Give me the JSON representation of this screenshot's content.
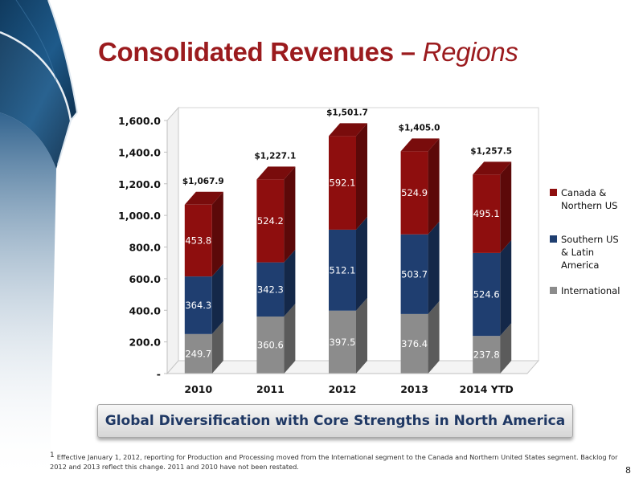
{
  "slide": {
    "title": "Consolidated Revenues",
    "title_separator": "–",
    "subtitle": "Regions",
    "banner": "Global Diversification with Core Strengths in North America",
    "footnote_marker": "1",
    "footnote": "Effective January 1, 2012, reporting for Production and Processing moved from the International segment to the Canada and Northern United States segment. Backlog for 2012 and 2013 reflect this change. 2011 and 2010 have not been restated.",
    "page_number": "8"
  },
  "colors": {
    "title": "#9b1b1e",
    "banner_text": "#1f3864",
    "international": "#8c8c8c",
    "southern_us_latin_america": "#1f3e70",
    "canada_northern_us": "#8e0e0e"
  },
  "chart_data": {
    "type": "bar",
    "stacked": true,
    "three_d": true,
    "categories": [
      "2010",
      "2011",
      "2012",
      "2013",
      "2014 YTD"
    ],
    "series": [
      {
        "name": "International",
        "values": [
          249.7,
          360.6,
          397.5,
          376.4,
          237.8
        ],
        "labels": [
          "249.7",
          "360.6",
          "397.5",
          "376.4",
          "237.8"
        ],
        "color": "#8c8c8c"
      },
      {
        "name": "Southern US & Latin America",
        "name_lines": [
          "Southern US",
          "& Latin",
          "America"
        ],
        "values": [
          364.3,
          342.3,
          512.1,
          503.7,
          524.6
        ],
        "labels": [
          "364.3",
          "342.3",
          "512.1",
          "503.7",
          "524.6"
        ],
        "color": "#1f3e70"
      },
      {
        "name": "Canada & Northern US",
        "name_lines": [
          "Canada &",
          "Northern US"
        ],
        "values": [
          453.8,
          524.2,
          592.1,
          524.9,
          495.1
        ],
        "labels": [
          "453.8",
          "524.2",
          "592.1",
          "524.9",
          "495.1"
        ],
        "color": "#8e0e0e"
      }
    ],
    "totals": [
      1067.9,
      1227.1,
      1501.7,
      1405.0,
      1257.5
    ],
    "total_labels": [
      "$1,067.9",
      "$1,227.1",
      "$1,501.7",
      "$1,405.0",
      "$1,257.5"
    ],
    "yticks": [
      0,
      200,
      400,
      600,
      800,
      1000,
      1200,
      1400,
      1600
    ],
    "ytick_labels": [
      "-",
      "200.0",
      "400.0",
      "600.0",
      "800.0",
      "1,000.0",
      "1,200.0",
      "1,400.0",
      "1,600.0"
    ],
    "ylim": [
      0,
      1600
    ],
    "grid": false,
    "legend_position": "right",
    "legend_order": [
      "Canada & Northern US",
      "Southern US & Latin America",
      "International"
    ]
  }
}
